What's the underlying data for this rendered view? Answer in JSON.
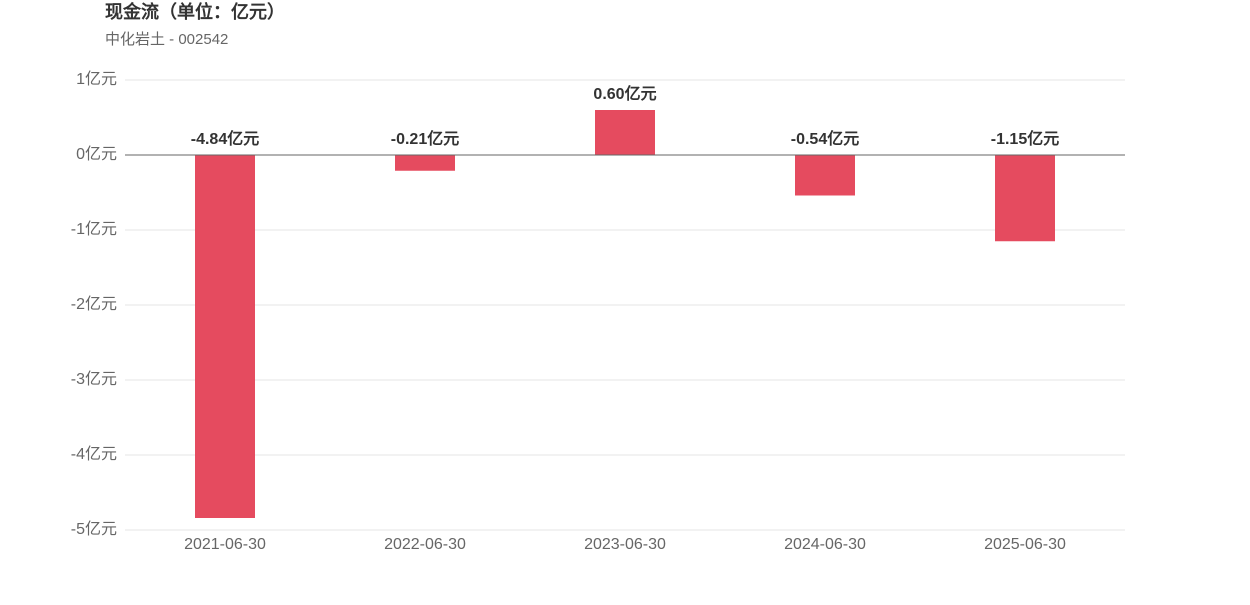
{
  "chart_data": {
    "type": "bar",
    "title": "现金流（单位：亿元）",
    "subtitle": "中化岩土 - 002542",
    "categories": [
      "2021-06-30",
      "2022-06-30",
      "2023-06-30",
      "2024-06-30",
      "2025-06-30"
    ],
    "values": [
      -4.84,
      -0.21,
      0.6,
      -0.54,
      -1.15
    ],
    "value_labels": [
      "-4.84亿元",
      "-0.21亿元",
      "0.60亿元",
      "-0.54亿元",
      "-1.15亿元"
    ],
    "color": "#e54b5f",
    "ylim": [
      -5,
      1
    ],
    "yticks": [
      {
        "value": 1,
        "label": "1亿元"
      },
      {
        "value": 0,
        "label": "0亿元"
      },
      {
        "value": -1,
        "label": "-1亿元"
      },
      {
        "value": -2,
        "label": "-2亿元"
      },
      {
        "value": -3,
        "label": "-3亿元"
      },
      {
        "value": -4,
        "label": "-4亿元"
      },
      {
        "value": -5,
        "label": "-5亿元"
      }
    ],
    "grid": true
  }
}
